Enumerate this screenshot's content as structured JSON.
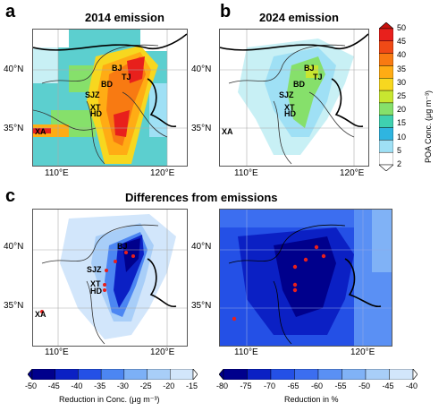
{
  "panels": {
    "a": {
      "letter": "a",
      "title": "2014 emission"
    },
    "b": {
      "letter": "b",
      "title": "2024 emission"
    },
    "c": {
      "letter": "c",
      "title": "Differences from emissions"
    }
  },
  "axes": {
    "lat_labels": [
      "40°N",
      "35°N"
    ],
    "lon_labels": [
      "110°E",
      "120°E"
    ]
  },
  "cities": [
    "BJ",
    "TJ",
    "BD",
    "SJZ",
    "XT",
    "HD",
    "XA"
  ],
  "colorbar_poa": {
    "label": "POA Conc. (μg m⁻³)",
    "ticks": [
      "50",
      "45",
      "40",
      "35",
      "30",
      "25",
      "20",
      "15",
      "10",
      "5",
      "2"
    ],
    "colors": [
      "#e8201c",
      "#f04a16",
      "#f87a12",
      "#ffac14",
      "#f7d71f",
      "#c8e630",
      "#86e06b",
      "#3fd0b0",
      "#2fb5e0",
      "#9fe0f5",
      "#ffffff"
    ]
  },
  "colorbar_abs": {
    "label": "Reduction in Conc.  (μg m⁻³)",
    "ticks": [
      "-50",
      "-45",
      "-40",
      "-35",
      "-30",
      "-25",
      "-20",
      "-15"
    ],
    "colors": [
      "#00008c",
      "#0b20c4",
      "#2450e6",
      "#4c86f2",
      "#7cb0f6",
      "#a8cef8",
      "#d2e6fb"
    ]
  },
  "colorbar_pct": {
    "label": "Reduction in %",
    "ticks": [
      "-80",
      "-75",
      "-70",
      "-65",
      "-60",
      "-55",
      "-50",
      "-45",
      "-40"
    ],
    "colors": [
      "#00008c",
      "#0b20c4",
      "#2450e6",
      "#3c6ef0",
      "#5a90f4",
      "#80b2f6",
      "#a8cef8",
      "#d2e6fb"
    ]
  }
}
